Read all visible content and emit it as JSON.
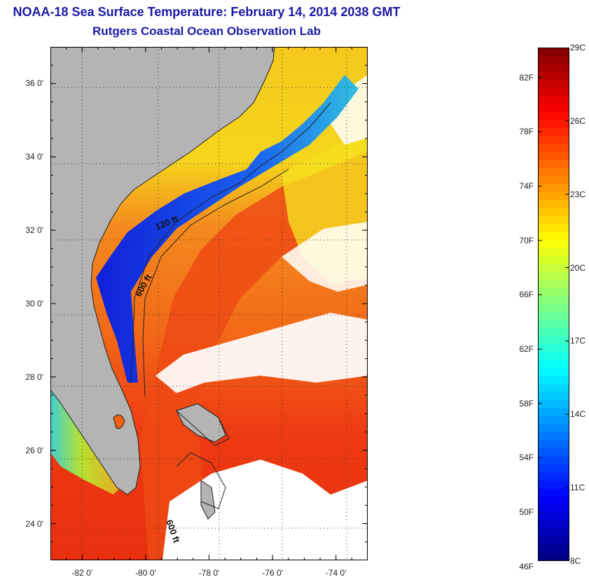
{
  "title": {
    "line1": "NOAA-18 Sea Surface Temperature:  February 14, 2014 2038 GMT",
    "line2": "Rutgers Coastal Ocean Observation Lab"
  },
  "map": {
    "lon_range": [
      -83,
      -73
    ],
    "lat_range": [
      23,
      37
    ],
    "lat_ticks": [
      {
        "value": 36,
        "label": "36 0'"
      },
      {
        "value": 34,
        "label": "34 0'"
      },
      {
        "value": 32,
        "label": "32 0'"
      },
      {
        "value": 30,
        "label": "30 0'"
      },
      {
        "value": 28,
        "label": "28 0'"
      },
      {
        "value": 26,
        "label": "26 0'"
      },
      {
        "value": 24,
        "label": "24 0'"
      }
    ],
    "lon_ticks": [
      {
        "value": -82,
        "label": "-82 0'"
      },
      {
        "value": -80,
        "label": "-80 0'"
      },
      {
        "value": -78,
        "label": "-78 0'"
      },
      {
        "value": -76,
        "label": "-76 0'"
      },
      {
        "value": -74,
        "label": "-74 0'"
      }
    ],
    "contour_labels": [
      "120 ft",
      "600 ft",
      "600 ft"
    ],
    "colors": {
      "land": "#b4b4b4",
      "cloud": "#ffffff",
      "warm_ocean": "#f03a12",
      "mid_ocean": "#f49a20",
      "cool_ocean": "#f3e21a",
      "shelf": "#1432e8"
    }
  },
  "colorbar": {
    "range_c": [
      8,
      29
    ],
    "f_labels": [
      {
        "value": 82,
        "label": "82F"
      },
      {
        "value": 78,
        "label": "78F"
      },
      {
        "value": 74,
        "label": "74F"
      },
      {
        "value": 70,
        "label": "70F"
      },
      {
        "value": 66,
        "label": "66F"
      },
      {
        "value": 62,
        "label": "62F"
      },
      {
        "value": 58,
        "label": "58F"
      },
      {
        "value": 54,
        "label": "54F"
      },
      {
        "value": 50,
        "label": "50F"
      },
      {
        "value": 46,
        "label": "46F"
      }
    ],
    "c_labels": [
      {
        "value": 29,
        "label": "29C"
      },
      {
        "value": 26,
        "label": "26C"
      },
      {
        "value": 23,
        "label": "23C"
      },
      {
        "value": 20,
        "label": "20C"
      },
      {
        "value": 17,
        "label": "17C"
      },
      {
        "value": 14,
        "label": "14C"
      },
      {
        "value": 11,
        "label": "11C"
      },
      {
        "value": 8,
        "label": "8C"
      }
    ]
  }
}
